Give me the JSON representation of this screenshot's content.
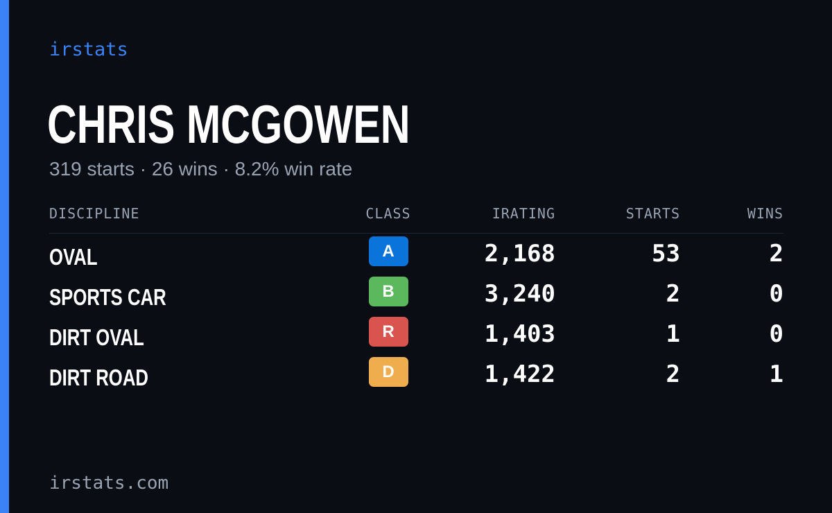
{
  "brand": "irstats",
  "accent_color": "#3b82f6",
  "player": {
    "name": "CHRIS MCGOWEN",
    "starts_text": "319 starts",
    "wins_text": "26 wins",
    "win_rate_text": "8.2% win rate",
    "separator": "·"
  },
  "table": {
    "headers": {
      "discipline": "DISCIPLINE",
      "class": "CLASS",
      "irating": "IRATING",
      "starts": "STARTS",
      "wins": "WINS"
    },
    "rows": [
      {
        "discipline": "OVAL",
        "class": "A",
        "class_color": "#0a74da",
        "irating": "2,168",
        "starts": "53",
        "wins": "2"
      },
      {
        "discipline": "SPORTS CAR",
        "class": "B",
        "class_color": "#5cb85c",
        "irating": "3,240",
        "starts": "2",
        "wins": "0"
      },
      {
        "discipline": "DIRT OVAL",
        "class": "R",
        "class_color": "#d9534f",
        "irating": "1,403",
        "starts": "1",
        "wins": "0"
      },
      {
        "discipline": "DIRT ROAD",
        "class": "D",
        "class_color": "#f0ad4e",
        "irating": "1,422",
        "starts": "2",
        "wins": "1"
      }
    ]
  },
  "footer": {
    "domain": "irstats.com"
  }
}
